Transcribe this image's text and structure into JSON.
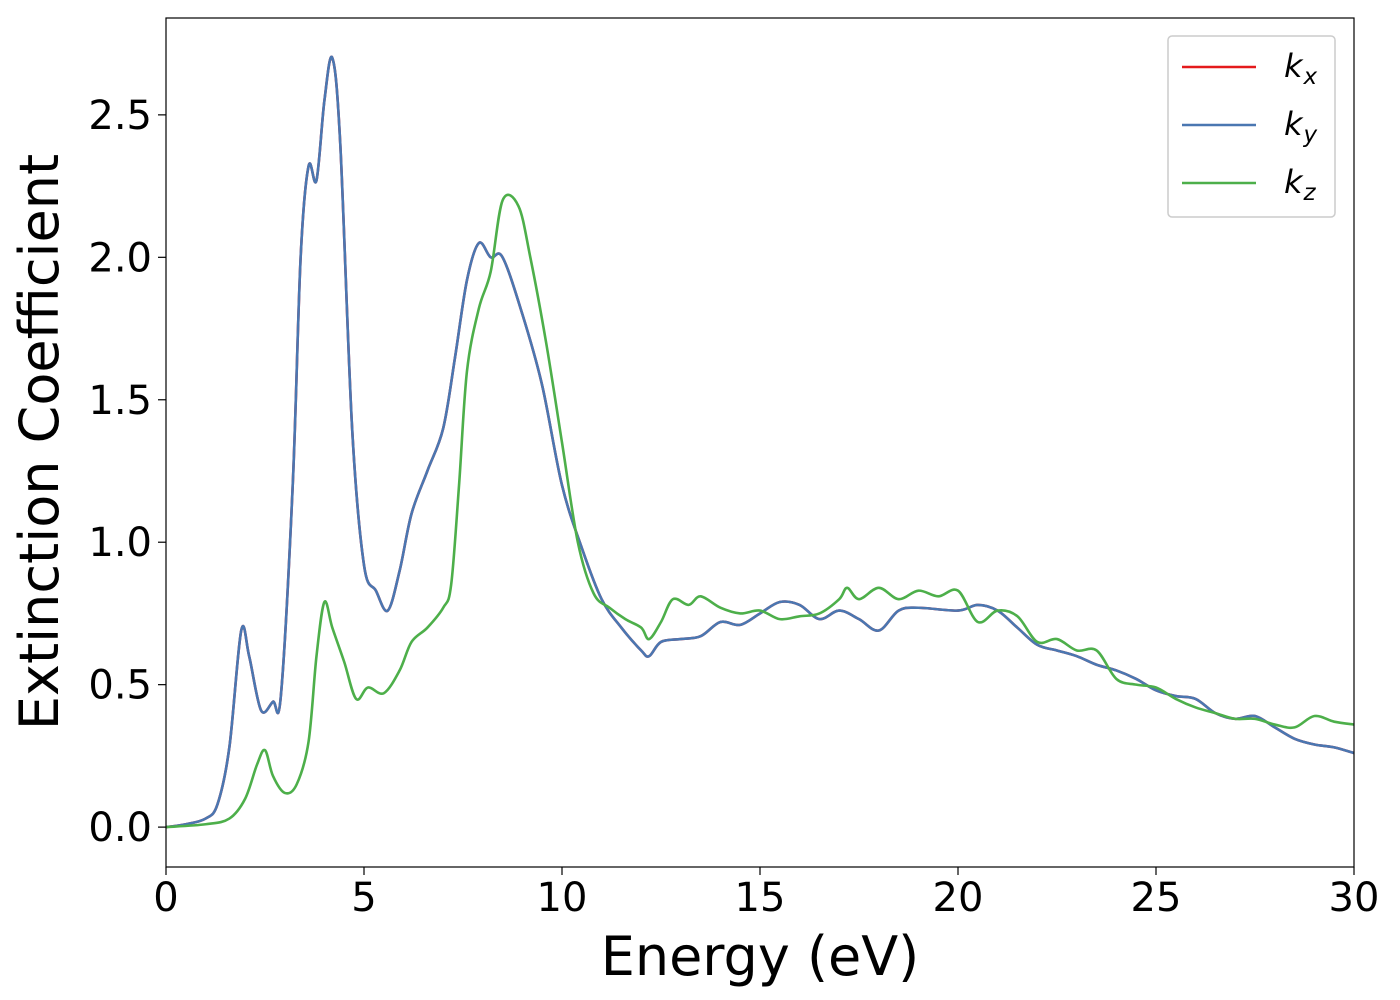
{
  "chart_data": {
    "type": "line",
    "title": "",
    "xlabel": "Energy (eV)",
    "ylabel": "Extinction Coefficient",
    "xlim": [
      0,
      30
    ],
    "ylim": [
      -0.14,
      2.84
    ],
    "xticks": [
      0,
      5,
      10,
      15,
      20,
      25,
      30
    ],
    "xtick_labels": [
      "0",
      "5",
      "10",
      "15",
      "20",
      "25",
      "30"
    ],
    "yticks": [
      0.0,
      0.5,
      1.0,
      1.5,
      2.0,
      2.5
    ],
    "ytick_labels": [
      "0.0",
      "0.5",
      "1.0",
      "1.5",
      "2.0",
      "2.5"
    ],
    "grid": false,
    "legend_position": "top-right",
    "series": [
      {
        "name": "k_x",
        "label_base": "k",
        "label_sub": "x",
        "color": "#e41a1c",
        "points": [
          [
            0,
            0
          ],
          [
            0.5,
            0.01
          ],
          [
            1.0,
            0.03
          ],
          [
            1.3,
            0.08
          ],
          [
            1.6,
            0.28
          ],
          [
            1.9,
            0.69
          ],
          [
            2.1,
            0.6
          ],
          [
            2.4,
            0.41
          ],
          [
            2.7,
            0.44
          ],
          [
            2.9,
            0.46
          ],
          [
            3.2,
            1.2
          ],
          [
            3.4,
            2.0
          ],
          [
            3.6,
            2.32
          ],
          [
            3.8,
            2.27
          ],
          [
            4.0,
            2.55
          ],
          [
            4.2,
            2.7
          ],
          [
            4.4,
            2.4
          ],
          [
            4.7,
            1.4
          ],
          [
            5.0,
            0.92
          ],
          [
            5.3,
            0.83
          ],
          [
            5.6,
            0.76
          ],
          [
            5.9,
            0.9
          ],
          [
            6.2,
            1.1
          ],
          [
            6.6,
            1.25
          ],
          [
            7.0,
            1.4
          ],
          [
            7.3,
            1.65
          ],
          [
            7.6,
            1.92
          ],
          [
            7.9,
            2.05
          ],
          [
            8.2,
            2.0
          ],
          [
            8.5,
            2.0
          ],
          [
            9.0,
            1.8
          ],
          [
            9.5,
            1.55
          ],
          [
            10.0,
            1.2
          ],
          [
            10.5,
            0.98
          ],
          [
            11.0,
            0.8
          ],
          [
            11.5,
            0.7
          ],
          [
            12.0,
            0.62
          ],
          [
            12.2,
            0.6
          ],
          [
            12.5,
            0.65
          ],
          [
            13.0,
            0.66
          ],
          [
            13.5,
            0.67
          ],
          [
            14.0,
            0.72
          ],
          [
            14.5,
            0.71
          ],
          [
            15.0,
            0.75
          ],
          [
            15.5,
            0.79
          ],
          [
            16.0,
            0.78
          ],
          [
            16.5,
            0.73
          ],
          [
            17.0,
            0.76
          ],
          [
            17.5,
            0.73
          ],
          [
            18.0,
            0.69
          ],
          [
            18.5,
            0.76
          ],
          [
            19.0,
            0.77
          ],
          [
            20.0,
            0.76
          ],
          [
            20.5,
            0.78
          ],
          [
            21.0,
            0.76
          ],
          [
            21.5,
            0.7
          ],
          [
            22.0,
            0.64
          ],
          [
            22.5,
            0.62
          ],
          [
            23.0,
            0.6
          ],
          [
            23.5,
            0.57
          ],
          [
            24.0,
            0.55
          ],
          [
            24.5,
            0.52
          ],
          [
            25.0,
            0.48
          ],
          [
            25.5,
            0.46
          ],
          [
            26.0,
            0.45
          ],
          [
            26.5,
            0.4
          ],
          [
            27.0,
            0.38
          ],
          [
            27.5,
            0.39
          ],
          [
            28.0,
            0.35
          ],
          [
            28.5,
            0.31
          ],
          [
            29.0,
            0.29
          ],
          [
            29.5,
            0.28
          ],
          [
            30.0,
            0.26
          ]
        ]
      },
      {
        "name": "k_y",
        "label_base": "k",
        "label_sub": "y",
        "color": "#4a77b1",
        "points": [
          [
            0,
            0
          ],
          [
            0.5,
            0.01
          ],
          [
            1.0,
            0.03
          ],
          [
            1.3,
            0.08
          ],
          [
            1.6,
            0.28
          ],
          [
            1.9,
            0.69
          ],
          [
            2.1,
            0.6
          ],
          [
            2.4,
            0.41
          ],
          [
            2.7,
            0.44
          ],
          [
            2.9,
            0.46
          ],
          [
            3.2,
            1.2
          ],
          [
            3.4,
            2.0
          ],
          [
            3.6,
            2.32
          ],
          [
            3.8,
            2.27
          ],
          [
            4.0,
            2.55
          ],
          [
            4.2,
            2.7
          ],
          [
            4.4,
            2.4
          ],
          [
            4.7,
            1.4
          ],
          [
            5.0,
            0.92
          ],
          [
            5.3,
            0.83
          ],
          [
            5.6,
            0.76
          ],
          [
            5.9,
            0.9
          ],
          [
            6.2,
            1.1
          ],
          [
            6.6,
            1.25
          ],
          [
            7.0,
            1.4
          ],
          [
            7.3,
            1.65
          ],
          [
            7.6,
            1.92
          ],
          [
            7.9,
            2.05
          ],
          [
            8.2,
            2.0
          ],
          [
            8.5,
            2.0
          ],
          [
            9.0,
            1.8
          ],
          [
            9.5,
            1.55
          ],
          [
            10.0,
            1.2
          ],
          [
            10.5,
            0.98
          ],
          [
            11.0,
            0.8
          ],
          [
            11.5,
            0.7
          ],
          [
            12.0,
            0.62
          ],
          [
            12.2,
            0.6
          ],
          [
            12.5,
            0.65
          ],
          [
            13.0,
            0.66
          ],
          [
            13.5,
            0.67
          ],
          [
            14.0,
            0.72
          ],
          [
            14.5,
            0.71
          ],
          [
            15.0,
            0.75
          ],
          [
            15.5,
            0.79
          ],
          [
            16.0,
            0.78
          ],
          [
            16.5,
            0.73
          ],
          [
            17.0,
            0.76
          ],
          [
            17.5,
            0.73
          ],
          [
            18.0,
            0.69
          ],
          [
            18.5,
            0.76
          ],
          [
            19.0,
            0.77
          ],
          [
            20.0,
            0.76
          ],
          [
            20.5,
            0.78
          ],
          [
            21.0,
            0.76
          ],
          [
            21.5,
            0.7
          ],
          [
            22.0,
            0.64
          ],
          [
            22.5,
            0.62
          ],
          [
            23.0,
            0.6
          ],
          [
            23.5,
            0.57
          ],
          [
            24.0,
            0.55
          ],
          [
            24.5,
            0.52
          ],
          [
            25.0,
            0.48
          ],
          [
            25.5,
            0.46
          ],
          [
            26.0,
            0.45
          ],
          [
            26.5,
            0.4
          ],
          [
            27.0,
            0.38
          ],
          [
            27.5,
            0.39
          ],
          [
            28.0,
            0.35
          ],
          [
            28.5,
            0.31
          ],
          [
            29.0,
            0.29
          ],
          [
            29.5,
            0.28
          ],
          [
            30.0,
            0.26
          ]
        ]
      },
      {
        "name": "k_z",
        "label_base": "k",
        "label_sub": "z",
        "color": "#4daf4a",
        "points": [
          [
            0,
            0
          ],
          [
            1.0,
            0.01
          ],
          [
            1.6,
            0.03
          ],
          [
            2.0,
            0.1
          ],
          [
            2.3,
            0.22
          ],
          [
            2.5,
            0.27
          ],
          [
            2.7,
            0.18
          ],
          [
            3.0,
            0.12
          ],
          [
            3.3,
            0.15
          ],
          [
            3.6,
            0.3
          ],
          [
            3.8,
            0.6
          ],
          [
            4.0,
            0.79
          ],
          [
            4.2,
            0.7
          ],
          [
            4.5,
            0.58
          ],
          [
            4.8,
            0.45
          ],
          [
            5.1,
            0.49
          ],
          [
            5.5,
            0.47
          ],
          [
            5.9,
            0.55
          ],
          [
            6.2,
            0.65
          ],
          [
            6.6,
            0.7
          ],
          [
            7.0,
            0.77
          ],
          [
            7.2,
            0.85
          ],
          [
            7.4,
            1.2
          ],
          [
            7.6,
            1.6
          ],
          [
            7.9,
            1.82
          ],
          [
            8.2,
            1.95
          ],
          [
            8.5,
            2.2
          ],
          [
            8.9,
            2.18
          ],
          [
            9.2,
            2.0
          ],
          [
            9.6,
            1.7
          ],
          [
            10.0,
            1.35
          ],
          [
            10.4,
            1.0
          ],
          [
            10.8,
            0.82
          ],
          [
            11.2,
            0.77
          ],
          [
            11.6,
            0.73
          ],
          [
            12.0,
            0.7
          ],
          [
            12.2,
            0.66
          ],
          [
            12.5,
            0.72
          ],
          [
            12.8,
            0.8
          ],
          [
            13.2,
            0.78
          ],
          [
            13.5,
            0.81
          ],
          [
            14.0,
            0.77
          ],
          [
            14.5,
            0.75
          ],
          [
            15.0,
            0.76
          ],
          [
            15.5,
            0.73
          ],
          [
            16.0,
            0.74
          ],
          [
            16.5,
            0.75
          ],
          [
            17.0,
            0.8
          ],
          [
            17.2,
            0.84
          ],
          [
            17.5,
            0.8
          ],
          [
            18.0,
            0.84
          ],
          [
            18.5,
            0.8
          ],
          [
            19.0,
            0.83
          ],
          [
            19.5,
            0.81
          ],
          [
            20.0,
            0.83
          ],
          [
            20.5,
            0.72
          ],
          [
            21.0,
            0.76
          ],
          [
            21.5,
            0.74
          ],
          [
            22.0,
            0.65
          ],
          [
            22.5,
            0.66
          ],
          [
            23.0,
            0.62
          ],
          [
            23.5,
            0.62
          ],
          [
            24.0,
            0.52
          ],
          [
            24.5,
            0.5
          ],
          [
            25.0,
            0.49
          ],
          [
            25.5,
            0.45
          ],
          [
            26.0,
            0.42
          ],
          [
            26.5,
            0.4
          ],
          [
            27.0,
            0.38
          ],
          [
            27.5,
            0.38
          ],
          [
            28.0,
            0.36
          ],
          [
            28.5,
            0.35
          ],
          [
            29.0,
            0.39
          ],
          [
            29.5,
            0.37
          ],
          [
            30.0,
            0.36
          ]
        ]
      }
    ]
  }
}
